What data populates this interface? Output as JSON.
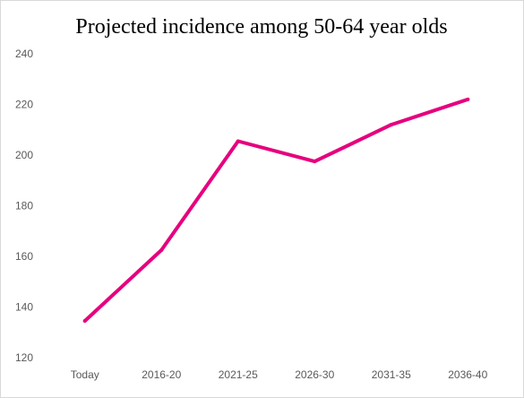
{
  "chart_data": {
    "type": "line",
    "title": "Projected incidence among 50-64 year olds",
    "xlabel": "",
    "ylabel": "",
    "categories": [
      "Today",
      "2016-20",
      "2021-25",
      "2026-30",
      "2031-35",
      "2036-40"
    ],
    "series": [
      {
        "values": [
          134.5,
          162.5,
          205.5,
          197.5,
          212,
          222
        ],
        "color": "#e6007e"
      }
    ],
    "ylim": [
      120,
      240
    ],
    "yticks": [
      120,
      140,
      160,
      180,
      200,
      220,
      240
    ],
    "grid": false,
    "legend": "none"
  }
}
